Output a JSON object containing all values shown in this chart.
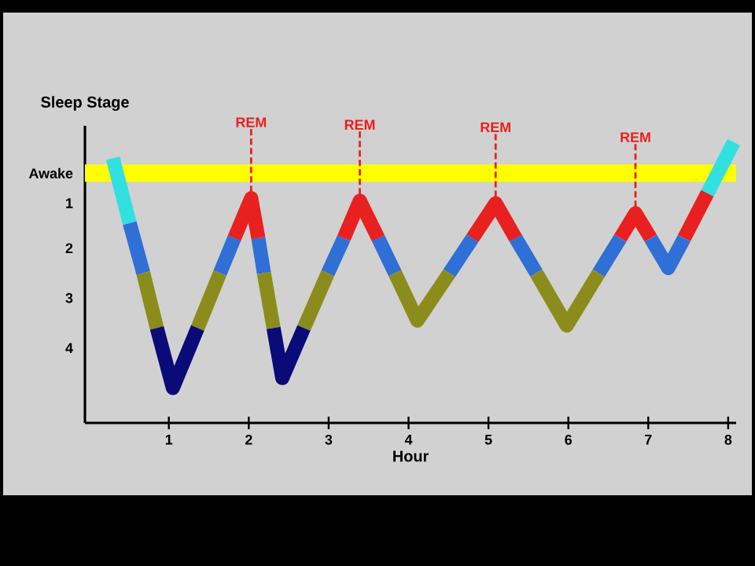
{
  "chart_data": {
    "type": "line",
    "xlabel": "Hour",
    "ylabel": "Sleep Stage",
    "xlim": [
      -0.05,
      8.1
    ],
    "xticks": [
      1,
      2,
      3,
      4,
      5,
      6,
      7,
      8
    ],
    "ylim": [
      5.0,
      -0.95
    ],
    "yticks": [
      {
        "value": 0,
        "label": "Awake"
      },
      {
        "value": 0.6,
        "label": "1"
      },
      {
        "value": 1.5,
        "label": "2"
      },
      {
        "value": 2.5,
        "label": "3"
      },
      {
        "value": 3.5,
        "label": "4"
      }
    ],
    "grid": false,
    "legend": false,
    "marker": "none",
    "line_style": "solid",
    "ref_lines": [
      {
        "axis": "y",
        "value": 0,
        "color": "#ffff00"
      }
    ],
    "series": [
      {
        "color": "#33e0e0",
        "x": [
          0.3,
          0.51,
          null,
          7.74,
          8.07
        ],
        "values": [
          -0.3,
          1.0,
          null,
          0.4,
          -0.62
        ]
      },
      {
        "color": "#2f6fd6",
        "x": [
          0.51,
          0.68,
          null,
          1.64,
          1.82,
          null,
          2.12,
          2.19,
          null,
          2.99,
          3.19,
          null,
          3.62,
          3.83,
          null,
          4.51,
          4.8,
          null,
          5.34,
          5.6,
          null,
          6.38,
          6.65,
          null,
          7.03,
          7.25,
          7.45
        ],
        "values": [
          1.0,
          2.0,
          null,
          2.0,
          1.3,
          null,
          1.3,
          2.0,
          null,
          2.0,
          1.3,
          null,
          1.3,
          2.0,
          null,
          2.0,
          1.3,
          null,
          1.3,
          2.0,
          null,
          2.0,
          1.3,
          null,
          1.3,
          1.9,
          1.3
        ]
      },
      {
        "color": "#e82020",
        "x": [
          1.82,
          2.03,
          2.12,
          null,
          3.19,
          3.39,
          3.62,
          null,
          4.8,
          5.09,
          5.34,
          null,
          6.65,
          6.84,
          7.03,
          null,
          7.45,
          7.74
        ],
        "values": [
          1.3,
          0.5,
          1.3,
          null,
          1.3,
          0.55,
          1.3,
          null,
          1.3,
          0.6,
          1.3,
          null,
          1.3,
          0.8,
          1.3,
          null,
          1.3,
          0.4
        ]
      },
      {
        "color": "#8c8c1c",
        "x": [
          0.68,
          0.85,
          null,
          1.36,
          1.64,
          null,
          2.19,
          2.31,
          null,
          2.69,
          2.99,
          null,
          3.83,
          4.11,
          4.51,
          null,
          5.6,
          5.98,
          6.38
        ],
        "values": [
          2.0,
          3.1,
          null,
          3.1,
          2.0,
          null,
          2.0,
          3.1,
          null,
          3.1,
          2.0,
          null,
          2.0,
          2.95,
          2.0,
          null,
          2.0,
          3.05,
          2.0
        ]
      },
      {
        "color": "#0a0a78",
        "x": [
          0.85,
          1.05,
          1.36,
          null,
          2.31,
          2.42,
          2.69
        ],
        "values": [
          3.1,
          4.3,
          3.1,
          null,
          3.1,
          4.1,
          3.1
        ]
      }
    ],
    "annotations": [
      {
        "text": "REM",
        "x": 2.03,
        "y": 0.5
      },
      {
        "text": "REM",
        "x": 3.39,
        "y": 0.55
      },
      {
        "text": "REM",
        "x": 5.09,
        "y": 0.6
      },
      {
        "text": "REM",
        "x": 6.84,
        "y": 0.8
      }
    ]
  }
}
